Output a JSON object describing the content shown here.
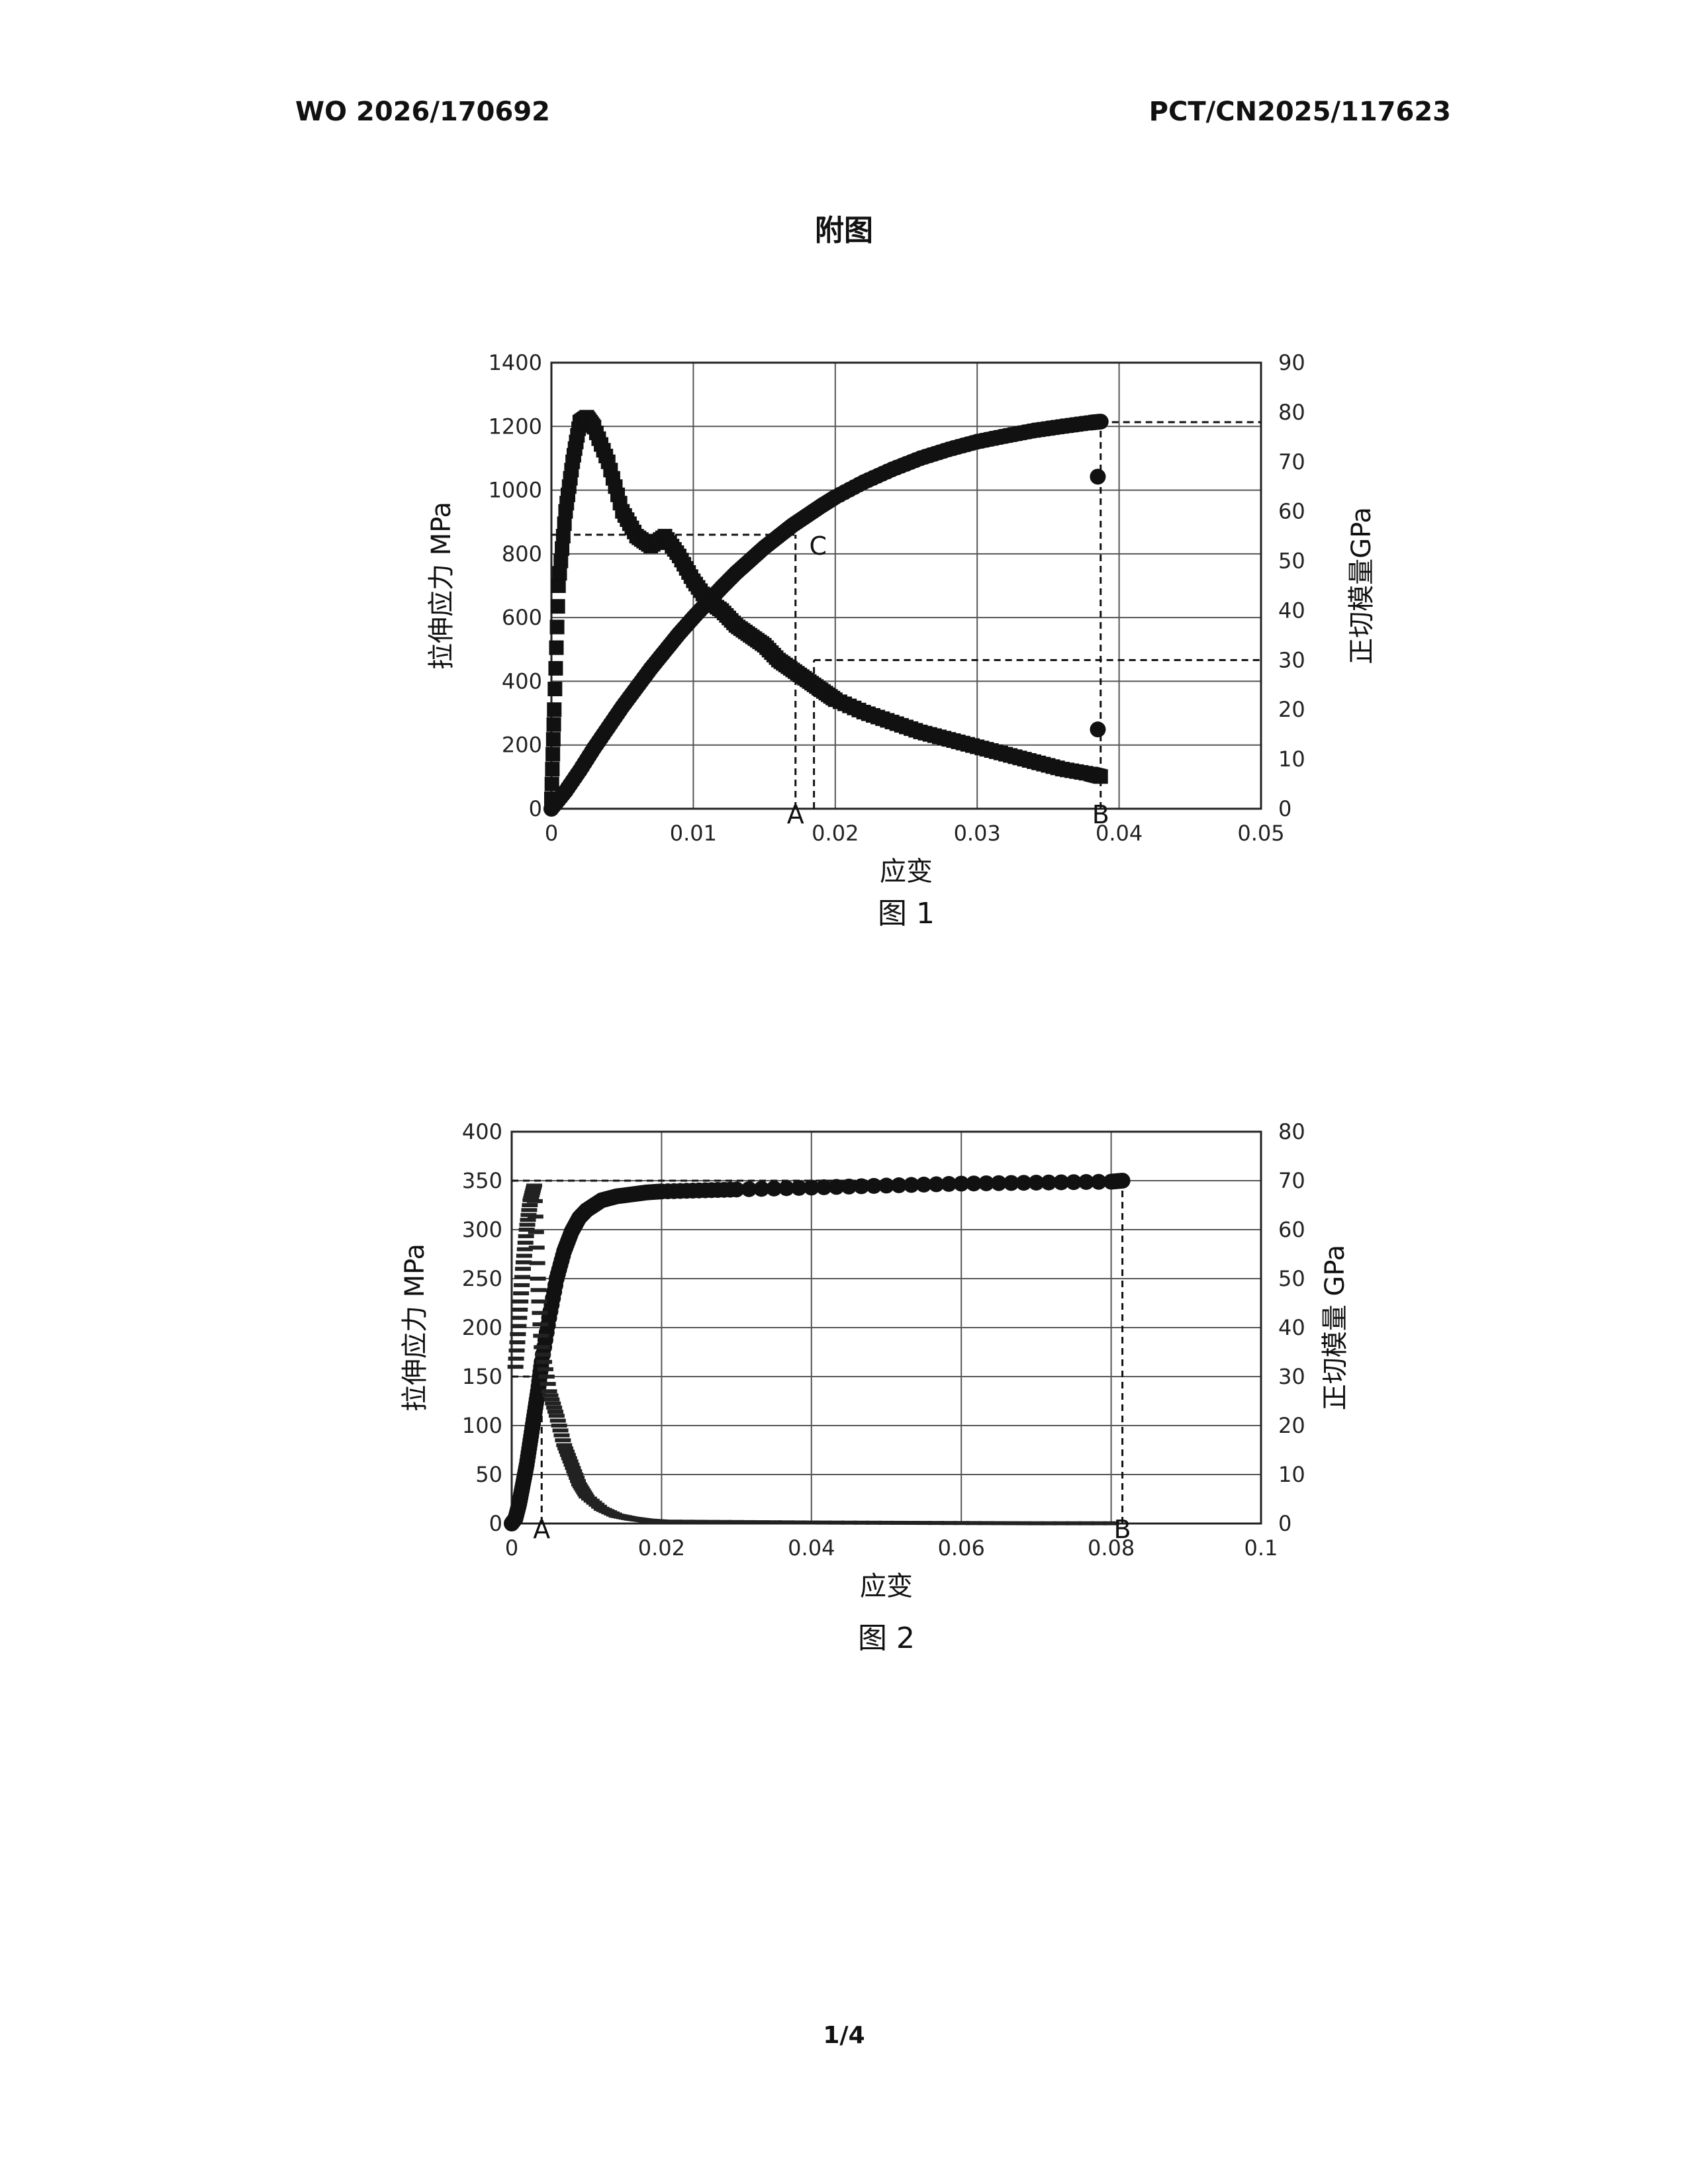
{
  "header": {
    "left": "WO 2026/170692",
    "right": "PCT/CN2025/117623"
  },
  "page_heading": "附图",
  "page_number": "1/4",
  "colors": {
    "ink": "#111111",
    "grid": "#555555",
    "background": "#ffffff"
  },
  "chart_data": [
    {
      "type": "scatter",
      "caption": "图 1",
      "xlabel": "应变",
      "ylabel": "拉伸应力 MPa",
      "y2label": "正切模量GPa",
      "xlim": [
        0,
        0.05
      ],
      "ylim": [
        0,
        1400
      ],
      "y2lim": [
        0,
        90
      ],
      "xticks": [
        "0",
        "0.01",
        "0.02",
        "0.03",
        "0.04",
        "0.05"
      ],
      "yticks": [
        "0",
        "200",
        "400",
        "600",
        "800",
        "1000",
        "1200",
        "1400"
      ],
      "y2ticks": [
        "0",
        "10",
        "20",
        "30",
        "40",
        "50",
        "60",
        "70",
        "80",
        "90"
      ],
      "grid": true,
      "point_labels": [
        "A",
        "B",
        "C"
      ],
      "reference_lines": [
        {
          "label": "A",
          "x": 0.0172,
          "y": 860,
          "axis": "left"
        },
        {
          "label": "B",
          "x": 0.0387,
          "y": 78,
          "axis": "right"
        },
        {
          "label": "",
          "x": 0.0185,
          "y": 30,
          "axis": "right"
        }
      ],
      "series": [
        {
          "axis": "left",
          "marker": "circle",
          "x": [
            0,
            0.001,
            0.002,
            0.003,
            0.004,
            0.005,
            0.006,
            0.007,
            0.008,
            0.009,
            0.01,
            0.011,
            0.012,
            0.013,
            0.014,
            0.015,
            0.016,
            0.017,
            0.018,
            0.019,
            0.02,
            0.022,
            0.024,
            0.026,
            0.028,
            0.03,
            0.032,
            0.034,
            0.036,
            0.038,
            0.0387
          ],
          "y": [
            0,
            55,
            120,
            190,
            255,
            320,
            380,
            440,
            495,
            550,
            600,
            648,
            695,
            740,
            780,
            820,
            855,
            890,
            920,
            950,
            978,
            1025,
            1065,
            1100,
            1128,
            1152,
            1170,
            1187,
            1200,
            1212,
            1215
          ]
        },
        {
          "axis": "right",
          "marker": "square",
          "x": [
            0,
            0.0002,
            0.0005,
            0.001,
            0.0015,
            0.002,
            0.0025,
            0.003,
            0.004,
            0.005,
            0.006,
            0.007,
            0.008,
            0.009,
            0.01,
            0.011,
            0.012,
            0.013,
            0.014,
            0.015,
            0.016,
            0.017,
            0.018,
            0.019,
            0.02,
            0.022,
            0.024,
            0.026,
            0.028,
            0.03,
            0.032,
            0.034,
            0.036,
            0.038,
            0.0387
          ],
          "y": [
            2,
            20,
            45,
            60,
            70,
            78,
            79,
            77,
            70,
            60,
            55,
            53,
            55,
            51,
            46,
            42,
            40,
            37,
            35,
            33,
            30,
            28,
            26,
            24,
            22,
            19.5,
            17.5,
            15.5,
            14,
            12.5,
            11,
            9.5,
            8,
            7,
            6.5
          ]
        },
        {
          "axis": "right",
          "marker": "circle",
          "x": [
            0.0385,
            0.0385
          ],
          "y": [
            67,
            16
          ]
        }
      ]
    },
    {
      "type": "scatter",
      "caption": "图 2",
      "xlabel": "应变",
      "ylabel": "拉伸应力 MPa",
      "y2label": "正切模量 GPa",
      "xlim": [
        0,
        0.1
      ],
      "ylim": [
        0,
        400
      ],
      "y2lim": [
        0,
        80
      ],
      "xticks": [
        "0",
        "0.02",
        "0.04",
        "0.06",
        "0.08",
        "0.1"
      ],
      "yticks": [
        "0",
        "50",
        "100",
        "150",
        "200",
        "250",
        "300",
        "350",
        "400"
      ],
      "y2ticks": [
        "0",
        "10",
        "20",
        "30",
        "40",
        "50",
        "60",
        "70",
        "80"
      ],
      "grid": true,
      "point_labels": [
        "A",
        "B"
      ],
      "reference_lines": [
        {
          "label": "A",
          "x": 0.004,
          "y": 150,
          "axis": "left"
        },
        {
          "label": "B",
          "x": 0.0815,
          "y": 350,
          "axis": "left"
        }
      ],
      "series": [
        {
          "axis": "left",
          "marker": "circle",
          "x": [
            0,
            0.0005,
            0.001,
            0.0015,
            0.002,
            0.0025,
            0.003,
            0.0035,
            0.004,
            0.005,
            0.006,
            0.007,
            0.008,
            0.009,
            0.01,
            0.012,
            0.014,
            0.016,
            0.018,
            0.02,
            0.025,
            0.03,
            0.04,
            0.05,
            0.06,
            0.07,
            0.08,
            0.0815
          ],
          "y": [
            0,
            5,
            20,
            40,
            60,
            85,
            110,
            135,
            165,
            210,
            250,
            278,
            298,
            312,
            320,
            330,
            334,
            336,
            338,
            339,
            340,
            341,
            343,
            345,
            347,
            348,
            349,
            350
          ]
        },
        {
          "axis": "right",
          "marker": "dash",
          "x": [
            0.0005,
            0.001,
            0.0015,
            0.002,
            0.0025,
            0.003,
            0.0035,
            0.004,
            0.005,
            0.006,
            0.007,
            0.008,
            0.009,
            0.01,
            0.012,
            0.014,
            0.016,
            0.018,
            0.02,
            0.03,
            0.04,
            0.05,
            0.06,
            0.07,
            0.08
          ],
          "y": [
            32,
            42,
            52,
            60,
            66,
            69,
            50,
            36,
            27,
            22,
            16,
            12,
            8,
            5.5,
            3,
            1.6,
            1,
            0.6,
            0.4,
            0.3,
            0.2,
            0.15,
            0.1,
            0.05,
            0.05
          ]
        }
      ]
    }
  ]
}
